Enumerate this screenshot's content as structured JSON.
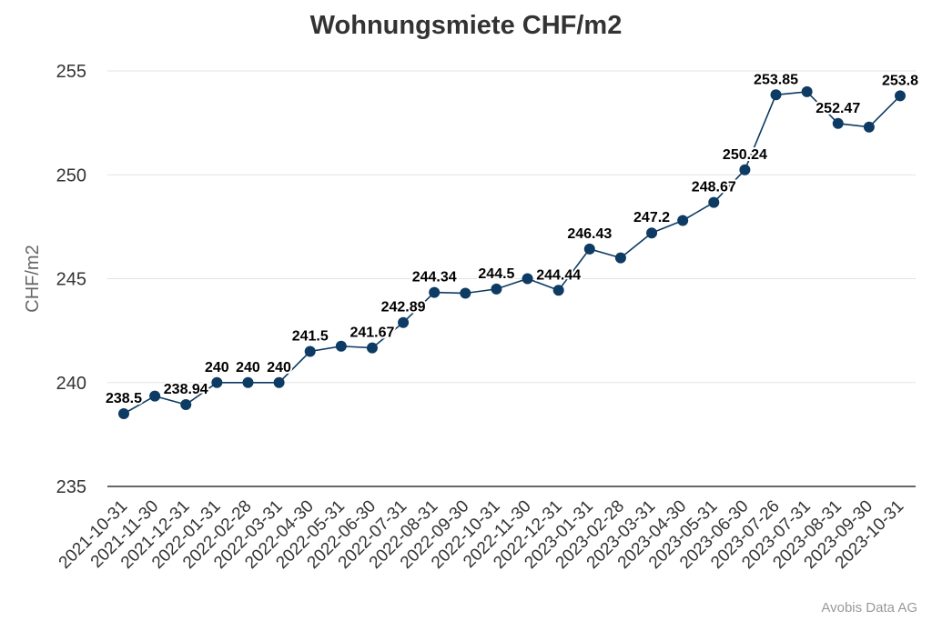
{
  "chart_data": {
    "type": "line",
    "title": "Wohnungsmiete CHF/m2",
    "ylabel": "CHF/m2",
    "xlabel": "",
    "ylim": [
      235,
      255
    ],
    "yticks": [
      235,
      240,
      245,
      250,
      255
    ],
    "grid": true,
    "color": "#0d3b63",
    "categories": [
      "2021-10-31",
      "2021-11-30",
      "2021-12-31",
      "2022-01-31",
      "2022-02-28",
      "2022-03-31",
      "2022-04-30",
      "2022-05-31",
      "2022-06-30",
      "2022-07-31",
      "2022-08-31",
      "2022-09-30",
      "2022-10-31",
      "2022-11-30",
      "2022-12-31",
      "2023-01-31",
      "2023-02-28",
      "2023-03-31",
      "2023-04-30",
      "2023-05-31",
      "2023-06-30",
      "2023-07-26",
      "2023-07-31",
      "2023-08-31",
      "2023-09-30",
      "2023-10-31"
    ],
    "series": [
      {
        "values": [
          238.5,
          239.35,
          238.94,
          240,
          240,
          240,
          241.5,
          241.75,
          241.67,
          242.89,
          244.34,
          244.3,
          244.5,
          245.0,
          244.44,
          246.43,
          246.0,
          247.2,
          247.8,
          248.67,
          250.24,
          253.85,
          254.0,
          252.47,
          252.3,
          253.8
        ],
        "labels": [
          "238.5",
          "",
          "238.94",
          "240",
          "240",
          "240",
          "241.5",
          "",
          "241.67",
          "242.89",
          "244.34",
          "",
          "244.5",
          "",
          "244.44",
          "246.43",
          "",
          "247.2",
          "",
          "248.67",
          "250.24",
          "253.85",
          "",
          "252.47",
          "",
          "253.8"
        ]
      }
    ]
  },
  "credit": "Avobis Data AG"
}
